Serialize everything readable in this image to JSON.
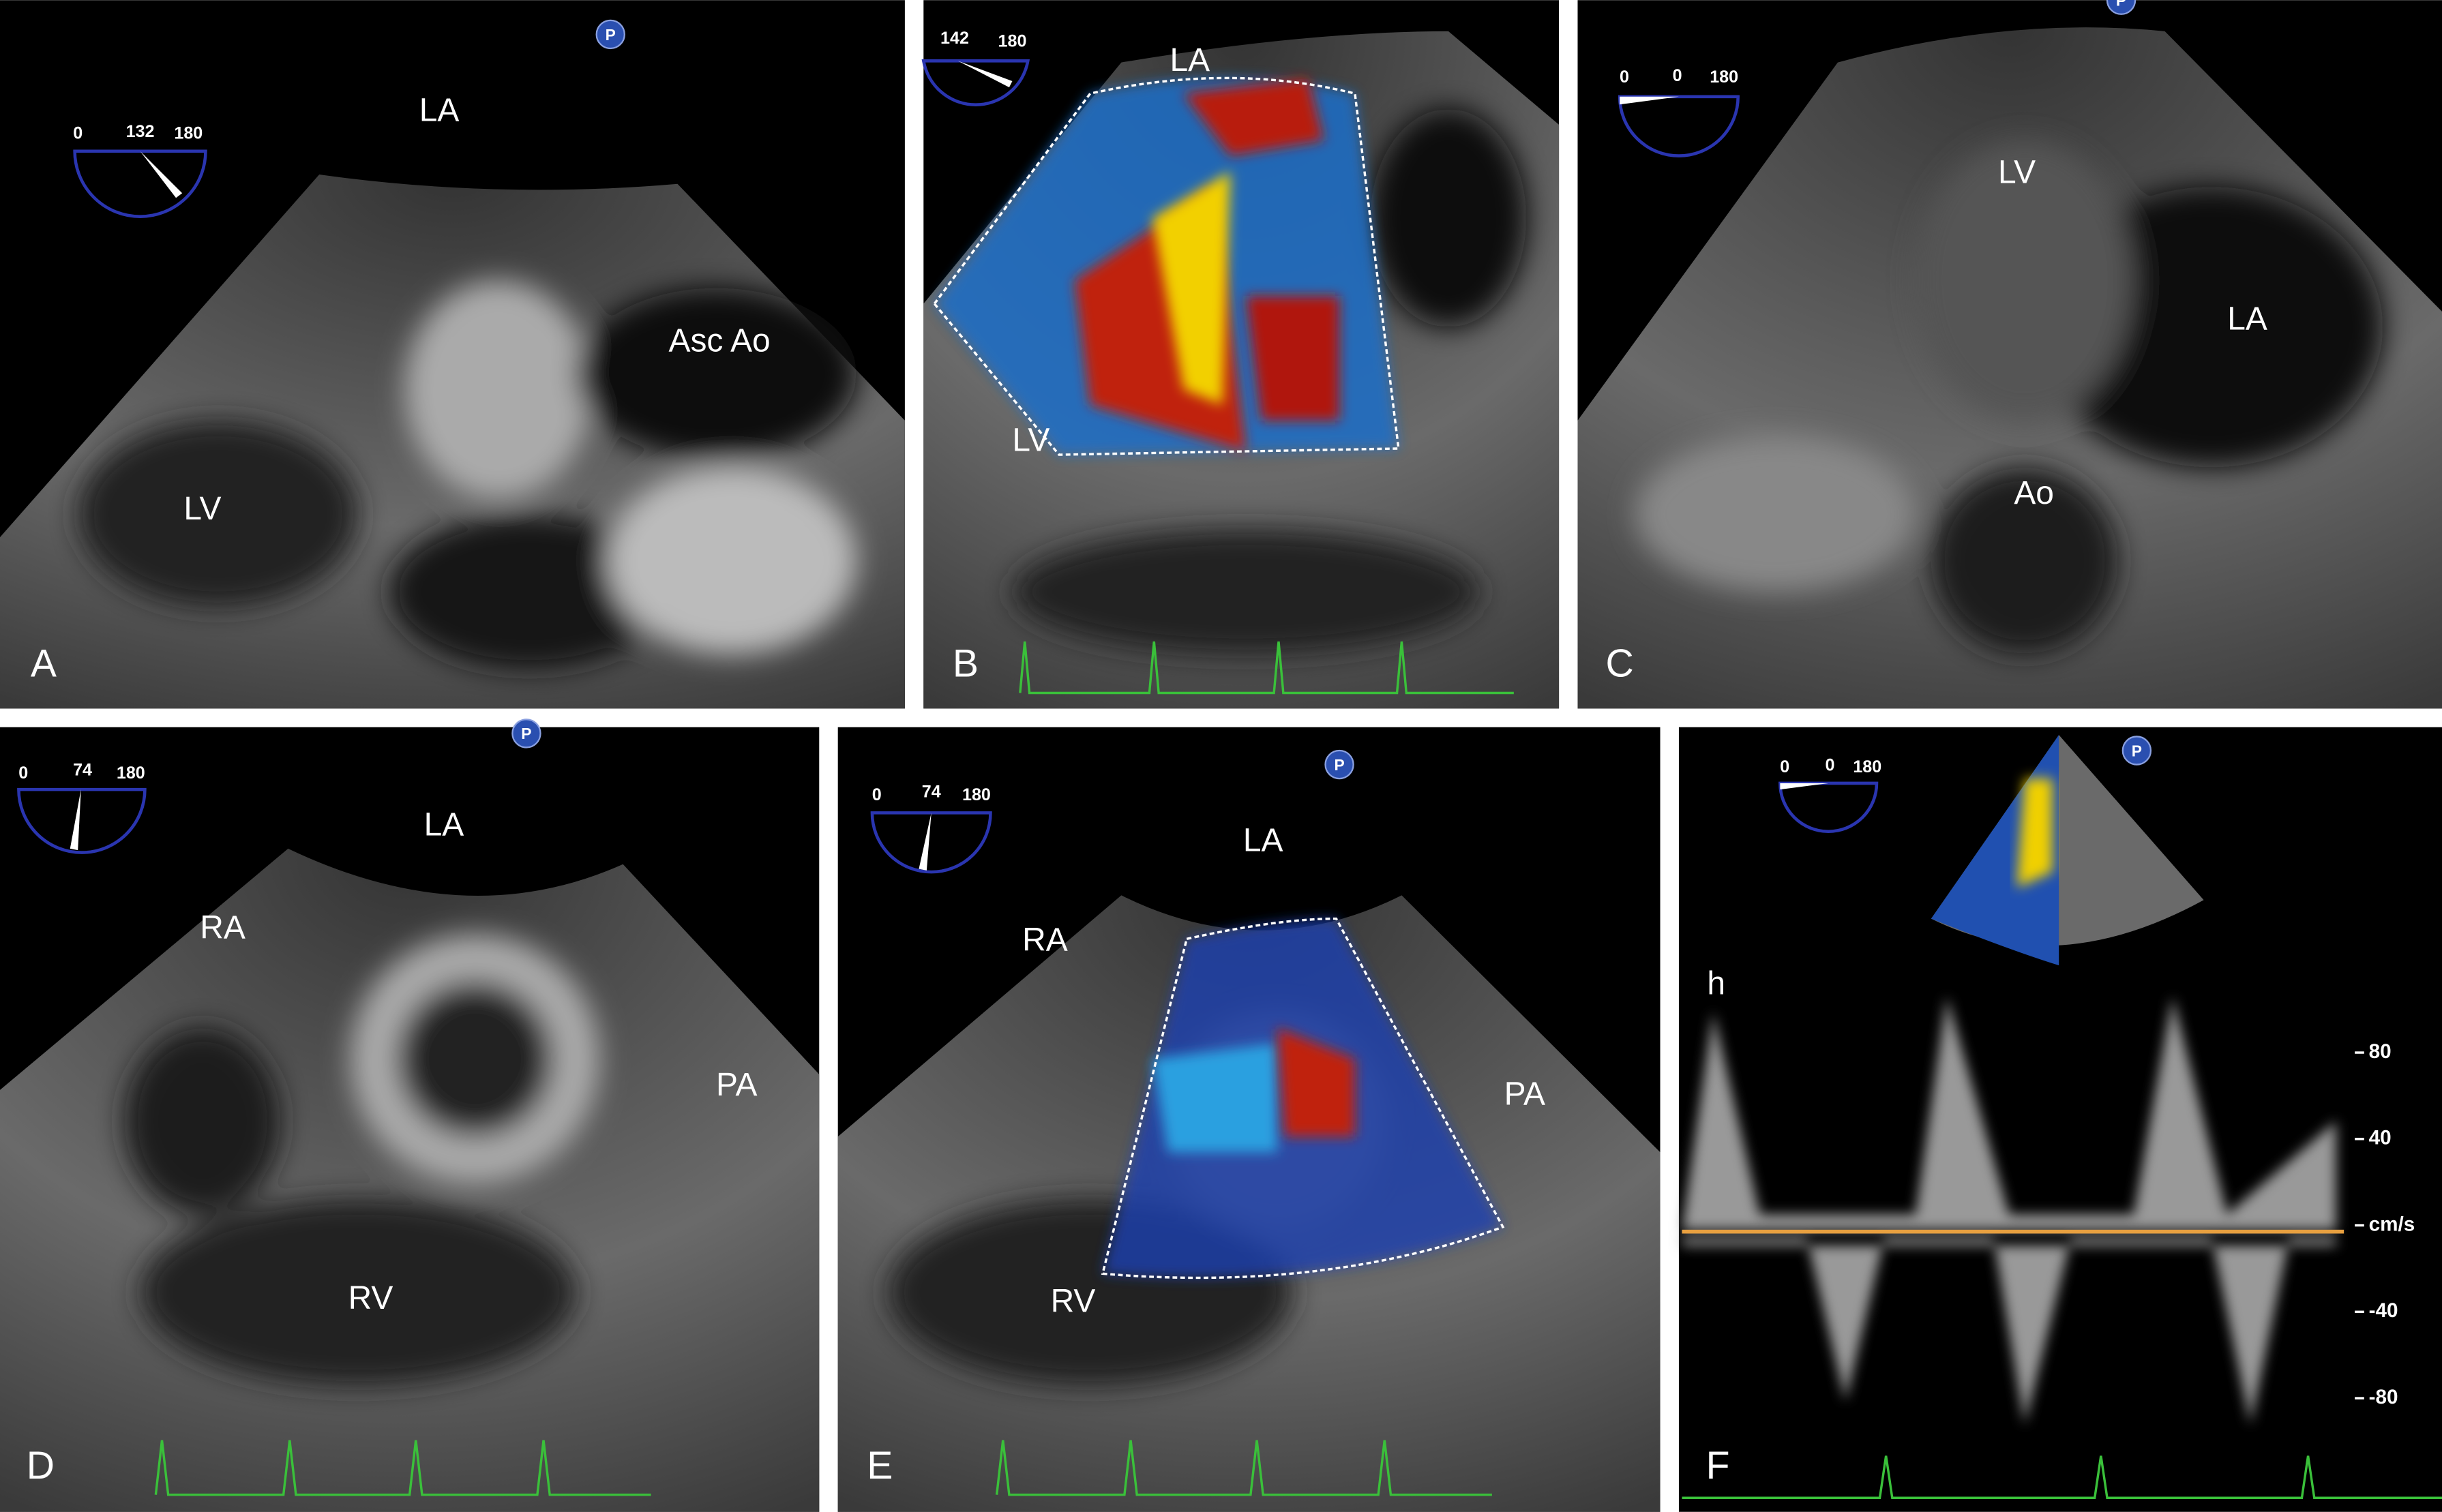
{
  "panels": [
    {
      "letter": "A",
      "labels": [
        "LA",
        "Asc Ao",
        "LV"
      ],
      "angle": [
        "0",
        "132",
        "180"
      ],
      "marker": "P"
    },
    {
      "letter": "B",
      "labels": [
        "LA",
        "LV"
      ],
      "angle": [
        "142",
        "180"
      ]
    },
    {
      "letter": "C",
      "labels": [
        "LV",
        "LA",
        "Ao"
      ],
      "angle": [
        "0",
        "0",
        "180"
      ],
      "marker": "P"
    },
    {
      "letter": "D",
      "labels": [
        "LA",
        "RA",
        "PA",
        "RV"
      ],
      "angle": [
        "0",
        "74",
        "180"
      ],
      "marker": "P"
    },
    {
      "letter": "E",
      "labels": [
        "LA",
        "RA",
        "PA",
        "RV"
      ],
      "angle": [
        "0",
        "74",
        "180"
      ],
      "marker": "P"
    },
    {
      "letter": "F",
      "labels": [
        "h"
      ],
      "angle": [
        "0",
        "0",
        "180"
      ],
      "marker": "P",
      "scale": [
        80,
        40,
        "cm/s",
        -40,
        -80
      ]
    }
  ]
}
